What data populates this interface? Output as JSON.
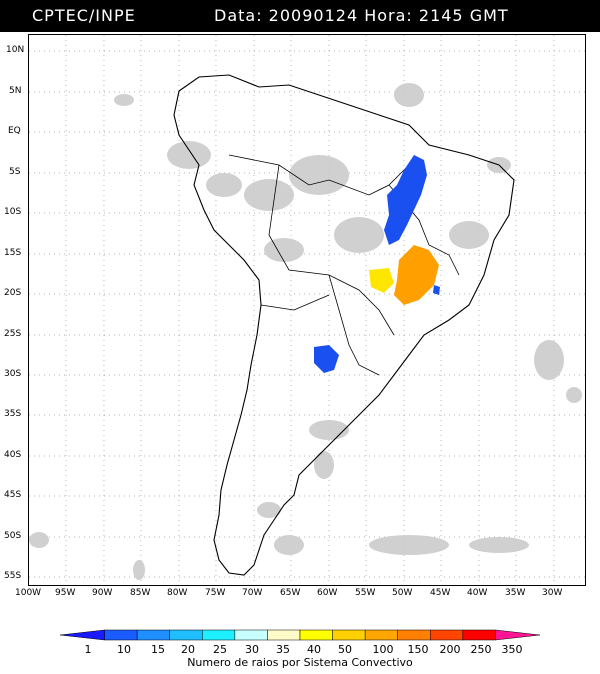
{
  "header": {
    "org": "CPTEC/INPE",
    "stamp": "Data: 20090124 Hora: 2145 GMT"
  },
  "axes": {
    "lat_labels": [
      "10N",
      "5N",
      "EQ",
      "5S",
      "10S",
      "15S",
      "20S",
      "25S",
      "30S",
      "35S",
      "40S",
      "45S",
      "50S",
      "55S"
    ],
    "lon_labels": [
      "100W",
      "95W",
      "90W",
      "85W",
      "80W",
      "75W",
      "70W",
      "65W",
      "60W",
      "55W",
      "50W",
      "45W",
      "40W",
      "35W",
      "30W"
    ]
  },
  "legend": {
    "ticks": [
      "1",
      "10",
      "15",
      "20",
      "25",
      "30",
      "35",
      "40",
      "50",
      "100",
      "150",
      "200",
      "250",
      "350"
    ],
    "title": "Numero de raios por Sistema Convectivo",
    "colors": [
      "#1a1aff",
      "#1a5cff",
      "#1f8fff",
      "#1fbfff",
      "#1ff0ff",
      "#c8ffff",
      "#fffbc8",
      "#ffff00",
      "#ffd000",
      "#ffa600",
      "#ff7f00",
      "#ff4500",
      "#ff0000",
      "#ff1493"
    ]
  },
  "map": {
    "colors": {
      "land_outline": "#000000",
      "cloud": "#c8c8c8",
      "blue_system": "#1a50f0",
      "orange_system": "#ffa000",
      "yellow_system": "#ffe600"
    }
  }
}
